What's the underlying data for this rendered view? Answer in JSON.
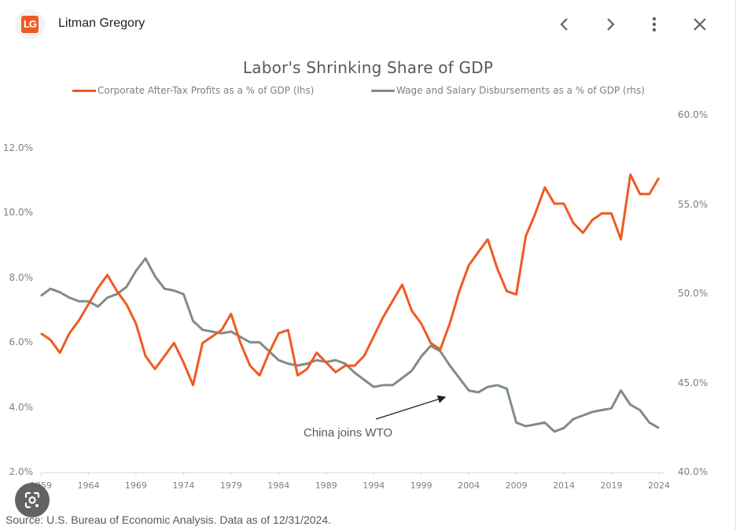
{
  "header": {
    "logo_text": "LG",
    "site_name": "Litman Gregory",
    "icons": {
      "back": "chevron-left-icon",
      "forward": "chevron-right-icon",
      "more": "more-vert-icon",
      "close": "close-icon"
    },
    "glyphs": {
      "back": "‹",
      "forward": "›",
      "more": "⋮",
      "close": "✕"
    }
  },
  "colors": {
    "profits": "#f05a22",
    "wages": "#7f8c88",
    "axis": "#d9d9d9",
    "text": "#7f7f7f"
  },
  "chart_data": {
    "type": "line",
    "title": "Labor's Shrinking Share of GDP",
    "xlabel": "",
    "ylabel": "",
    "legend_position": "top",
    "grid": false,
    "x": [
      1959,
      1960,
      1961,
      1962,
      1963,
      1964,
      1965,
      1966,
      1967,
      1968,
      1969,
      1970,
      1971,
      1972,
      1973,
      1974,
      1975,
      1976,
      1977,
      1978,
      1979,
      1980,
      1981,
      1982,
      1983,
      1984,
      1985,
      1986,
      1987,
      1988,
      1989,
      1990,
      1991,
      1992,
      1993,
      1994,
      1995,
      1996,
      1997,
      1998,
      1999,
      2000,
      2001,
      2002,
      2003,
      2004,
      2005,
      2006,
      2007,
      2008,
      2009,
      2010,
      2011,
      2012,
      2013,
      2014,
      2015,
      2016,
      2017,
      2018,
      2019,
      2020,
      2021,
      2022,
      2023,
      2024
    ],
    "x_ticks": [
      "1959",
      "1964",
      "1969",
      "1974",
      "1979",
      "1984",
      "1989",
      "1994",
      "1999",
      "2004",
      "2009",
      "2014",
      "2019",
      "2024"
    ],
    "x_range": [
      1959,
      2025
    ],
    "y_left": {
      "range": [
        2,
        12
      ],
      "ticks": [
        "2.0%",
        "4.0%",
        "6.0%",
        "8.0%",
        "10.0%",
        "12.0%"
      ],
      "tick_values": [
        2,
        4,
        6,
        8,
        10,
        12
      ]
    },
    "y_right": {
      "range": [
        40,
        60
      ],
      "ticks": [
        "40.0%",
        "45.0%",
        "50.0%",
        "55.0%",
        "60.0%"
      ],
      "tick_values": [
        40,
        45,
        50,
        55,
        60
      ]
    },
    "series": [
      {
        "name": "Corporate After-Tax Profits as a % of GDP (lhs)",
        "axis": "left",
        "color": "#f05a22",
        "values": [
          6.3,
          6.1,
          5.7,
          6.3,
          6.7,
          7.2,
          7.7,
          8.1,
          7.6,
          7.2,
          6.6,
          5.6,
          5.2,
          5.6,
          6.0,
          5.4,
          4.7,
          6.0,
          6.2,
          6.4,
          6.9,
          6.0,
          5.3,
          5.0,
          5.7,
          6.3,
          6.4,
          5.0,
          5.2,
          5.7,
          5.4,
          5.1,
          5.3,
          5.3,
          5.6,
          6.2,
          6.8,
          7.3,
          7.8,
          7.0,
          6.6,
          6.0,
          5.8,
          6.6,
          7.6,
          8.4,
          8.8,
          9.2,
          8.3,
          7.6,
          7.5,
          9.3,
          10.0,
          10.8,
          10.3,
          10.3,
          9.7,
          9.4,
          9.8,
          10.0,
          10.0,
          9.2,
          11.2,
          10.6,
          10.6,
          11.1
        ]
      },
      {
        "name": "Wage and Salary Disbursements as a % of GDP  (rhs)",
        "axis": "right",
        "color": "#7f8c88",
        "values": [
          49.9,
          50.3,
          50.1,
          49.8,
          49.6,
          49.6,
          49.3,
          49.8,
          50.0,
          50.4,
          51.3,
          52.0,
          51.0,
          50.3,
          50.2,
          50.0,
          48.5,
          48.0,
          47.9,
          47.8,
          47.9,
          47.6,
          47.3,
          47.3,
          46.8,
          46.3,
          46.1,
          46.0,
          46.1,
          46.3,
          46.2,
          46.3,
          46.1,
          45.6,
          45.2,
          44.8,
          44.9,
          44.9,
          45.3,
          45.7,
          46.5,
          47.1,
          46.8,
          46.0,
          45.3,
          44.6,
          44.5,
          44.8,
          44.9,
          44.7,
          42.8,
          42.6,
          42.7,
          42.8,
          42.3,
          42.5,
          43.0,
          43.2,
          43.4,
          43.5,
          43.6,
          44.6,
          43.8,
          43.5,
          42.8,
          42.5
        ]
      }
    ],
    "annotations": [
      {
        "text": "China joins WTO",
        "points_to_year": 2001,
        "arrow": true
      }
    ],
    "source": "Source: U.S. Bureau of Economic Analysis. Data as of 12/31/2024."
  },
  "overlay": {
    "lens_button": "google-lens-icon"
  }
}
